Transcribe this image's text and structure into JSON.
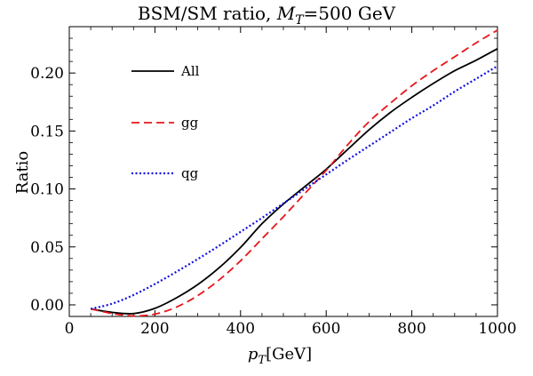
{
  "chart_data": {
    "type": "line",
    "title": "BSM/SM ratio, ",
    "title_var": "M",
    "title_sub": "T",
    "title_suffix": "=500 GeV",
    "xlabel_var": "p",
    "xlabel_sub": "T",
    "xlabel_unit": "[GeV]",
    "ylabel": "Ratio",
    "xlim": [
      0,
      1000
    ],
    "ylim": [
      -0.01,
      0.24
    ],
    "xticks": [
      0,
      200,
      400,
      600,
      800,
      1000
    ],
    "xtick_labels": [
      "0",
      "200",
      "400",
      "600",
      "800",
      "1000"
    ],
    "yticks": [
      0.0,
      0.05,
      0.1,
      0.15,
      0.2
    ],
    "ytick_labels": [
      "0.00",
      "0.05",
      "0.10",
      "0.15",
      "0.20"
    ],
    "legend_position": "top-left",
    "series": [
      {
        "name": "All",
        "color": "#000000",
        "style": "solid",
        "x": [
          50,
          100,
          150,
          200,
          250,
          300,
          350,
          400,
          450,
          500,
          550,
          600,
          650,
          700,
          750,
          800,
          850,
          900,
          950,
          1000
        ],
        "y": [
          -0.0035,
          -0.0065,
          -0.0075,
          -0.003,
          0.006,
          0.0175,
          0.032,
          0.0495,
          0.07,
          0.087,
          0.102,
          0.117,
          0.134,
          0.151,
          0.166,
          0.179,
          0.191,
          0.202,
          0.211,
          0.221
        ]
      },
      {
        "name": "gg",
        "color": "#e8161a",
        "style": "dashed",
        "x": [
          50,
          100,
          150,
          200,
          250,
          300,
          350,
          400,
          450,
          500,
          550,
          600,
          650,
          700,
          750,
          800,
          850,
          900,
          950,
          1000
        ],
        "y": [
          -0.0035,
          -0.0075,
          -0.0095,
          -0.008,
          -0.002,
          0.008,
          0.0215,
          0.038,
          0.057,
          0.076,
          0.096,
          0.116,
          0.138,
          0.158,
          0.174,
          0.189,
          0.202,
          0.214,
          0.226,
          0.237
        ]
      },
      {
        "name": "qg",
        "color": "#1010e0",
        "style": "dotted",
        "x": [
          50,
          100,
          150,
          200,
          250,
          300,
          350,
          400,
          450,
          500,
          550,
          600,
          650,
          700,
          750,
          800,
          850,
          900,
          950,
          1000
        ],
        "y": [
          -0.0035,
          0.001,
          0.0085,
          0.018,
          0.0285,
          0.0395,
          0.051,
          0.063,
          0.075,
          0.0875,
          0.1,
          0.1125,
          0.125,
          0.137,
          0.149,
          0.161,
          0.172,
          0.184,
          0.195,
          0.206
        ]
      }
    ]
  }
}
